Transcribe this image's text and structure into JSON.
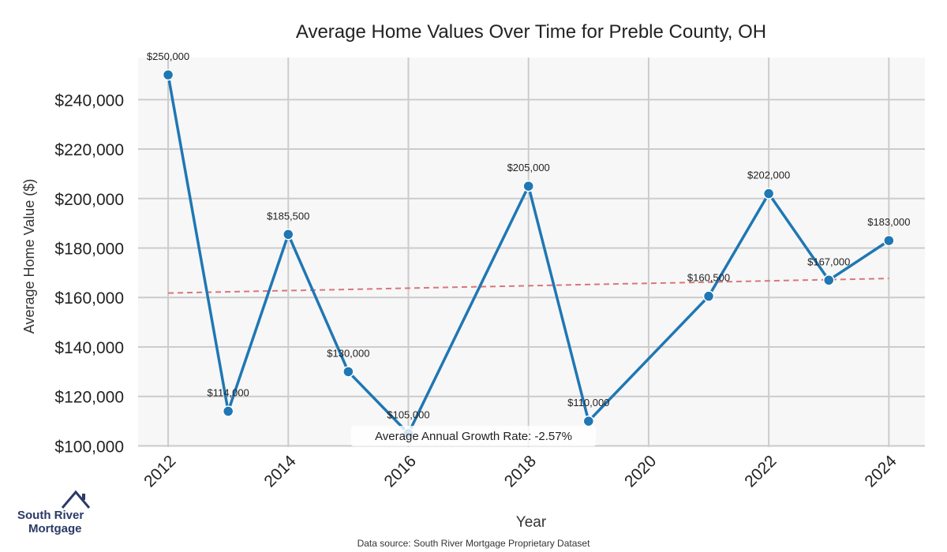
{
  "chart_data": {
    "type": "line",
    "title": "Average Home Values Over Time for Preble County, OH",
    "xlabel": "Year",
    "ylabel": "Average Home Value ($)",
    "x": [
      2012,
      2013,
      2014,
      2015,
      2016,
      2018,
      2019,
      2021,
      2022,
      2023,
      2024
    ],
    "values": [
      250000,
      114000,
      185500,
      130000,
      105000,
      205000,
      110000,
      160500,
      202000,
      167000,
      183000
    ],
    "data_labels": [
      "$250,000",
      "$114,000",
      "$185,500",
      "$130,000",
      "$105,000",
      "$205,000",
      "$110,000",
      "$160,500",
      "$202,000",
      "$167,000",
      "$183,000"
    ],
    "xticks": [
      2012,
      2014,
      2016,
      2018,
      2020,
      2022,
      2024
    ],
    "yticks": [
      100000,
      120000,
      140000,
      160000,
      180000,
      200000,
      220000,
      240000
    ],
    "ytick_labels": [
      "$100,000",
      "$120,000",
      "$140,000",
      "$160,000",
      "$180,000",
      "$200,000",
      "$220,000",
      "$240,000"
    ],
    "xlim": [
      2011.5,
      2024.6
    ],
    "ylim": [
      99500,
      257000
    ],
    "trend": {
      "x": [
        2012,
        2024
      ],
      "y": [
        161800,
        167700
      ]
    },
    "annotation": "Average Annual Growth Rate: -2.57%",
    "grid": true,
    "colors": {
      "line": "#1f77b4",
      "trend": "#d9777a",
      "plot_bg": "#f7f7f7",
      "grid": "#cccccc"
    }
  },
  "footer": {
    "source": "Data source: South River Mortgage Proprietary Dataset"
  },
  "logo": {
    "line1": "South River",
    "line2": "Mortgage"
  }
}
